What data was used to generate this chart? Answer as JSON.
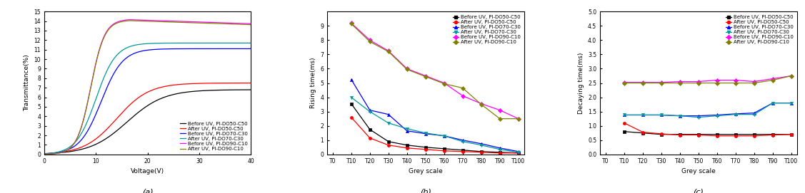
{
  "panel_a": {
    "xlabel": "Voltage(V)",
    "ylabel": "Transmittance(%)",
    "xlim": [
      0,
      40
    ],
    "ylim": [
      0,
      15
    ],
    "yticks": [
      0,
      1,
      2,
      3,
      4,
      5,
      6,
      7,
      8,
      9,
      10,
      11,
      12,
      13,
      14,
      15
    ],
    "xticks": [
      0,
      10,
      20,
      30,
      40
    ],
    "curves": [
      {
        "key": "before_do50",
        "color": "#000000",
        "label": "Before UV, PI-DO50-C50",
        "v0": 16,
        "k": 0.28,
        "vmax": 6.8,
        "peak": null
      },
      {
        "key": "after_do50",
        "color": "#ff0000",
        "label": "After UV, PI-DO50-C50",
        "v0": 14,
        "k": 0.32,
        "vmax": 7.5,
        "peak": null
      },
      {
        "key": "before_do70",
        "color": "#0000ff",
        "label": "Before UV, PI-DO70-C30",
        "v0": 11,
        "k": 0.48,
        "vmax": 11.1,
        "peak": null
      },
      {
        "key": "after_do70",
        "color": "#009999",
        "label": "After UV, PI-DO70-C30",
        "v0": 10,
        "k": 0.52,
        "vmax": 11.7,
        "peak": null
      },
      {
        "key": "before_do90",
        "color": "#ff00ff",
        "label": "Before UV, PI-DO90-C10",
        "v0": 9,
        "k": 0.75,
        "vmax": 14.2,
        "peak": 16.5
      },
      {
        "key": "after_do90",
        "color": "#808000",
        "label": "After UV, PI-DO90-C10",
        "v0": 9,
        "k": 0.75,
        "vmax": 14.1,
        "peak": 16.5
      }
    ]
  },
  "panel_b": {
    "xlabel": "Grey scale",
    "ylabel": "Rising time(ms)",
    "ylim": [
      0,
      10
    ],
    "yticks": [
      0,
      1,
      2,
      3,
      4,
      5,
      6,
      7,
      8,
      9
    ],
    "xticks": [
      "T0",
      "T10",
      "T20",
      "T30",
      "T40",
      "T50",
      "T60",
      "T70",
      "T80",
      "T90",
      "T100"
    ],
    "series": {
      "before_do50": {
        "color": "#000000",
        "marker": "s",
        "label": "Before UV, PI-DO50-C50",
        "data": [
          null,
          3.55,
          1.75,
          0.9,
          0.65,
          0.5,
          0.4,
          0.3,
          0.2,
          0.15,
          0.1
        ]
      },
      "after_do50": {
        "color": "#ff0000",
        "marker": "o",
        "label": "After UV, PI-DO50-C50",
        "data": [
          null,
          2.6,
          1.15,
          0.65,
          0.45,
          0.35,
          0.25,
          0.2,
          0.15,
          0.1,
          0.1
        ]
      },
      "before_do70": {
        "color": "#0000ff",
        "marker": "^",
        "label": "Before UV, PI-DO70-C30",
        "data": [
          null,
          5.25,
          3.1,
          2.8,
          1.65,
          1.45,
          1.3,
          1.0,
          0.75,
          0.45,
          0.2
        ]
      },
      "after_do70": {
        "color": "#009999",
        "marker": "v",
        "label": "After UV, PI-DO70-C30",
        "data": [
          null,
          4.0,
          3.0,
          2.2,
          1.8,
          1.5,
          1.3,
          0.9,
          0.65,
          0.35,
          0.15
        ]
      },
      "before_do90": {
        "color": "#ff00ff",
        "marker": "D",
        "label": "Before UV, PI-DO90-C10",
        "data": [
          null,
          9.2,
          8.0,
          7.25,
          6.0,
          5.5,
          5.0,
          4.1,
          3.55,
          3.1,
          2.5
        ]
      },
      "after_do90": {
        "color": "#808000",
        "marker": "D",
        "label": "After UV, PI-DO90-C10",
        "data": [
          null,
          9.15,
          7.9,
          7.2,
          5.95,
          5.45,
          4.95,
          4.65,
          3.5,
          2.5,
          2.5
        ]
      }
    }
  },
  "panel_c": {
    "xlabel": "Grey scale",
    "ylabel": "Decaying time(ms)",
    "ylim": [
      0.0,
      5.0
    ],
    "yticks": [
      0.0,
      0.5,
      1.0,
      1.5,
      2.0,
      2.5,
      3.0,
      3.5,
      4.0,
      4.5,
      5.0
    ],
    "xticks": [
      "T0",
      "T10",
      "T20",
      "T30",
      "T40",
      "T50",
      "T60",
      "T70",
      "T80",
      "T90",
      "T100"
    ],
    "series": {
      "before_do50": {
        "color": "#000000",
        "marker": "s",
        "label": "Before UV, PI-DO50-C50",
        "data": [
          null,
          0.8,
          0.75,
          0.7,
          0.7,
          0.7,
          0.7,
          0.7,
          0.7,
          0.7,
          0.7
        ]
      },
      "after_do50": {
        "color": "#ff0000",
        "marker": "o",
        "label": "After UV, PI-DO50-C50",
        "data": [
          null,
          1.1,
          0.78,
          0.72,
          0.68,
          0.68,
          0.65,
          0.65,
          0.65,
          0.68,
          0.7
        ]
      },
      "before_do70": {
        "color": "#0000ff",
        "marker": "^",
        "label": "Before UV, PI-DO70-C30",
        "data": [
          null,
          1.38,
          1.38,
          1.38,
          1.35,
          1.35,
          1.38,
          1.42,
          1.45,
          1.8,
          1.8
        ]
      },
      "after_do70": {
        "color": "#009999",
        "marker": "v",
        "label": "After UV, PI-DO70-C30",
        "data": [
          null,
          1.38,
          1.38,
          1.38,
          1.35,
          1.3,
          1.35,
          1.4,
          1.4,
          1.8,
          1.8
        ]
      },
      "before_do90": {
        "color": "#ff00ff",
        "marker": "D",
        "label": "Before UV, PI-DO90-C10",
        "data": [
          null,
          2.52,
          2.52,
          2.52,
          2.55,
          2.55,
          2.6,
          2.6,
          2.55,
          2.65,
          2.75
        ]
      },
      "after_do90": {
        "color": "#808000",
        "marker": "D",
        "label": "After UV, PI-DO90-C10",
        "data": [
          null,
          2.5,
          2.5,
          2.5,
          2.5,
          2.5,
          2.5,
          2.5,
          2.5,
          2.6,
          2.75
        ]
      }
    }
  },
  "legend_labels": [
    "Before UV, PI-DO50-C50",
    "After UV, PI-DO50-C50",
    "Before UV, PI-DO70-C30",
    "After UV, PI-DO70-C30",
    "Before UV, PI-DO90-C10",
    "After UV, PI-DO90-C10"
  ],
  "legend_colors": [
    "#000000",
    "#ff0000",
    "#0000ff",
    "#009999",
    "#ff00ff",
    "#808000"
  ],
  "legend_markers": [
    "s",
    "o",
    "^",
    "v",
    "D",
    "D"
  ],
  "font_size": 5.5,
  "label_font_size": 6.5,
  "tick_font_size": 5.5,
  "subtitle_font_size": 8
}
